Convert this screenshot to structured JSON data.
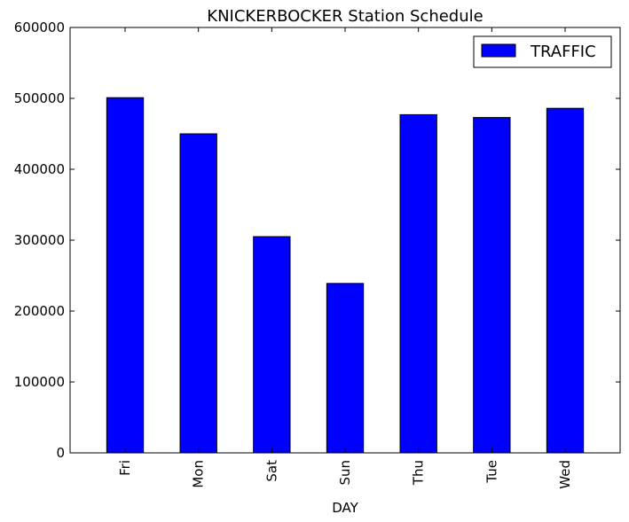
{
  "chart_data": {
    "type": "bar",
    "title": "KNICKERBOCKER Station Schedule",
    "xlabel": "DAY",
    "ylabel": "",
    "categories": [
      "Fri",
      "Mon",
      "Sat",
      "Sun",
      "Thu",
      "Tue",
      "Wed"
    ],
    "series": [
      {
        "name": "TRAFFIC",
        "color": "#0000ff",
        "values": [
          501000,
          450000,
          305000,
          239000,
          477000,
          473000,
          486000
        ]
      }
    ],
    "ylim": [
      0,
      600000
    ],
    "yticks": [
      0,
      100000,
      200000,
      300000,
      400000,
      500000,
      600000
    ],
    "yticks_labels": [
      "0",
      "100000",
      "200000",
      "300000",
      "400000",
      "500000",
      "600000"
    ],
    "grid": false,
    "legend_position": "top-right"
  }
}
